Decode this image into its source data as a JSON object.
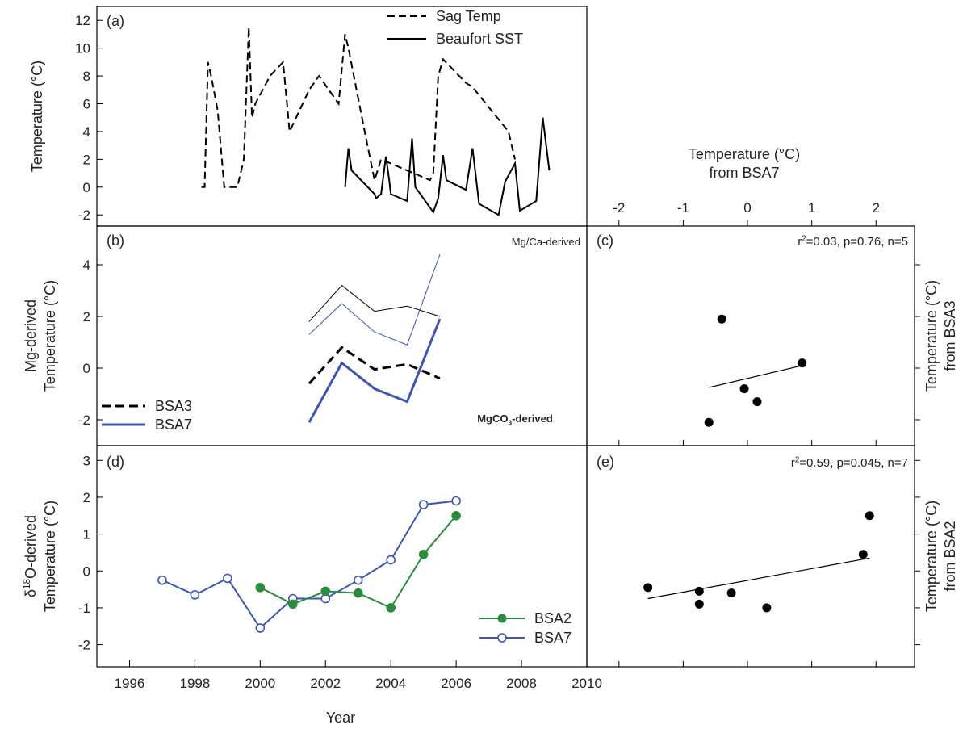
{
  "figure": {
    "xlabel": "Year",
    "top_axis_label_line1": "Temperature (°C)",
    "top_axis_label_line2": "from BSA7"
  },
  "chart_data": [
    {
      "id": "a",
      "type": "line",
      "panel_label": "(a)",
      "ylabel": "Temperature (°C)",
      "xlim": [
        1995,
        2010
      ],
      "ylim": [
        -2.8,
        13
      ],
      "yticks": [
        -2,
        0,
        2,
        4,
        6,
        8,
        10,
        12
      ],
      "series": [
        {
          "name": "Sag Temp",
          "style": "dashed",
          "color": "#000000",
          "x": [
            1998.2,
            1998.3,
            1998.4,
            1998.5,
            1998.7,
            1998.9,
            1999.1,
            1999.3,
            1999.5,
            1999.65,
            1999.75,
            1999.85,
            2000.3,
            2000.7,
            2000.9,
            2001.5,
            2001.8,
            2002.4,
            2002.6,
            2002.7,
            2003.2,
            2003.5,
            2003.7,
            2005.2,
            2005.3,
            2005.45,
            2005.6,
            2006.3,
            2006.5,
            2007.6,
            2007.8
          ],
          "y": [
            0,
            0,
            9,
            8,
            5.5,
            0,
            0,
            0,
            2,
            11.5,
            5,
            6,
            8,
            9,
            4,
            7,
            8,
            6,
            11,
            10,
            4,
            0.5,
            2,
            0.5,
            1,
            8,
            9.2,
            7.5,
            7.2,
            4,
            2
          ]
        },
        {
          "name": "Beaufort SST",
          "style": "solid",
          "color": "#000000",
          "x": [
            2002.6,
            2002.7,
            2002.8,
            2003.5,
            2003.55,
            2003.7,
            2003.85,
            2003.95,
            2004.0,
            2004.5,
            2004.65,
            2004.75,
            2005.3,
            2005.45,
            2005.6,
            2005.7,
            2006.3,
            2006.5,
            2006.7,
            2007.3,
            2007.5,
            2007.8,
            2007.95,
            2008.45,
            2008.65,
            2008.85
          ],
          "y": [
            0,
            2.8,
            1.2,
            -0.5,
            -0.8,
            -0.5,
            2.2,
            0.5,
            -0.5,
            -1,
            3.5,
            0,
            -1.8,
            -0.8,
            2.3,
            0.5,
            -0.2,
            2.8,
            -1.2,
            -2,
            0.4,
            1.7,
            -1.7,
            -1,
            5,
            1.2
          ]
        }
      ]
    },
    {
      "id": "b",
      "type": "line",
      "panel_label": "(b)",
      "ylabel_line1": "Mg-derived",
      "ylabel_line2": "Temperature (°C)",
      "xlim": [
        1995,
        2010
      ],
      "ylim": [
        -3,
        5.5
      ],
      "yticks": [
        -2,
        0,
        2,
        4
      ],
      "annotation_top": "Mg/Ca-derived",
      "annotation_bottom": "MgCO",
      "annotation_bottom_sub": "3",
      "annotation_bottom_rest": "-derived",
      "series": [
        {
          "name": "BSA3",
          "style": "dashed",
          "width": 3,
          "color": "#000000",
          "x": [
            2001.5,
            2002.5,
            2003.5,
            2004.5,
            2005.5
          ],
          "y": [
            -0.6,
            0.8,
            -0.05,
            0.15,
            -0.4
          ]
        },
        {
          "name": "BSA7",
          "style": "solid",
          "width": 3,
          "color": "#3b55b3",
          "x": [
            2001.5,
            2002.5,
            2003.5,
            2004.5,
            2005.5
          ],
          "y": [
            -2.1,
            0.2,
            -0.8,
            -1.3,
            1.9
          ]
        },
        {
          "name": "",
          "style": "solid",
          "width": 1,
          "color": "#000000",
          "x": [
            2001.5,
            2002.5,
            2003.5,
            2004.5,
            2005.5
          ],
          "y": [
            1.8,
            3.2,
            2.2,
            2.4,
            2.0
          ]
        },
        {
          "name": "",
          "style": "solid",
          "width": 1,
          "color": "#3b55b3",
          "x": [
            2001.5,
            2002.5,
            2003.5,
            2004.5,
            2005.5
          ],
          "y": [
            1.3,
            2.5,
            1.4,
            0.9,
            4.4
          ]
        }
      ]
    },
    {
      "id": "c",
      "type": "scatter",
      "panel_label": "(c)",
      "ylabel_line1": "Temperature (°C)",
      "ylabel_line2": "from BSA3",
      "stats": "r",
      "stats_sup": "2",
      "stats_rest": "=0.03, p=0.76, n=5",
      "xlim": [
        -2.5,
        2.6
      ],
      "xticks": [
        -2,
        -1,
        0,
        1,
        2
      ],
      "ylim": [
        -3,
        5.5
      ],
      "yticks": [
        -2,
        0,
        2,
        4
      ],
      "x": [
        -0.6,
        -0.4,
        -0.05,
        0.15,
        0.85
      ],
      "y": [
        -2.1,
        1.9,
        -0.8,
        -1.3,
        0.2
      ],
      "fit": [
        [
          -0.6,
          -0.75
        ],
        [
          0.85,
          0.1
        ]
      ]
    },
    {
      "id": "d",
      "type": "line",
      "panel_label": "(d)",
      "ylabel_line1": "δ",
      "ylabel_line1_sup": "18",
      "ylabel_line1_rest": "O-derived",
      "ylabel_line2": "Temperature (°C)",
      "xlim": [
        1995,
        2010
      ],
      "ylim": [
        -2.6,
        3.4
      ],
      "yticks": [
        -2,
        -1,
        0,
        1,
        2,
        3
      ],
      "xticks": [
        1996,
        1998,
        2000,
        2002,
        2004,
        2006,
        2008,
        2010
      ],
      "series": [
        {
          "name": "BSA2",
          "marker": "filled",
          "color": "#2a8c3e",
          "x": [
            2000,
            2001,
            2002,
            2003,
            2004,
            2005,
            2006
          ],
          "y": [
            -0.45,
            -0.9,
            -0.55,
            -0.6,
            -1.0,
            0.45,
            1.5
          ]
        },
        {
          "name": "BSA7",
          "marker": "open",
          "color": "#3b55b3",
          "x": [
            1997,
            1998,
            1999,
            2000,
            2001,
            2002,
            2003,
            2004,
            2005,
            2006
          ],
          "y": [
            -0.25,
            -0.65,
            -0.2,
            -1.55,
            -0.75,
            -0.75,
            -0.25,
            0.3,
            1.8,
            1.9
          ]
        }
      ]
    },
    {
      "id": "e",
      "type": "scatter",
      "panel_label": "(e)",
      "ylabel_line1": "Temperature (°C)",
      "ylabel_line2": "from BSA2",
      "stats": "r",
      "stats_sup": "2",
      "stats_rest": "=0.59, p=0.045, n=7",
      "xlim": [
        -2.5,
        2.6
      ],
      "ylim": [
        -2.6,
        3.4
      ],
      "x": [
        -1.55,
        -0.75,
        -0.75,
        -0.25,
        0.3,
        1.8,
        1.9
      ],
      "y": [
        -0.45,
        -0.55,
        -0.9,
        -0.6,
        -1.0,
        0.45,
        1.5
      ],
      "fit": [
        [
          -1.55,
          -0.75
        ],
        [
          1.9,
          0.35
        ]
      ]
    }
  ]
}
